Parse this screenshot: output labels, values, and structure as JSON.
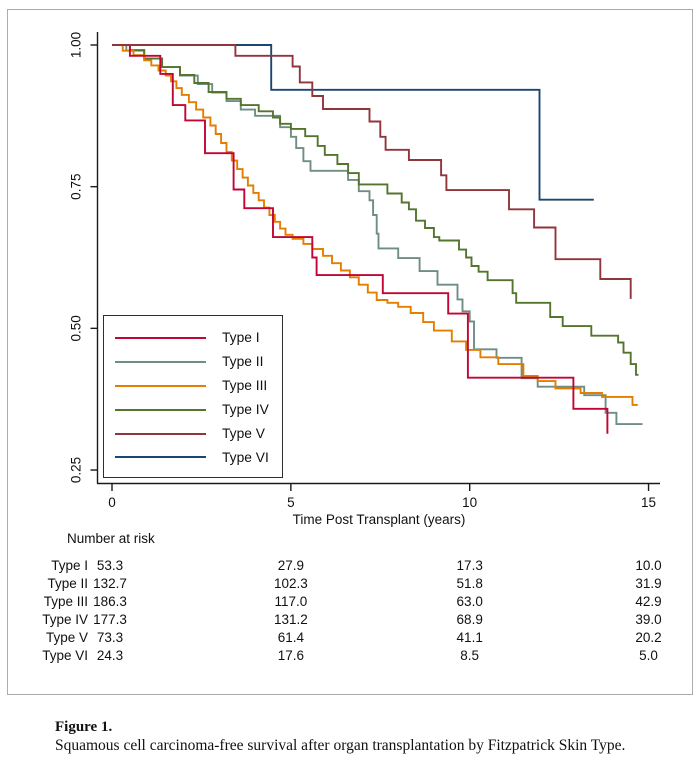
{
  "figure": {
    "caption_title": "Figure 1.",
    "caption_text": "Squamous cell carcinoma-free survival after organ transplantation by Fitzpatrick Skin Type."
  },
  "chart_data": {
    "type": "line",
    "subtype": "kaplan-meier-step-survival",
    "title": "",
    "xlabel": "Time Post Transplant (years)",
    "ylabel": "",
    "xlim": [
      0,
      15.2
    ],
    "ylim": [
      0.22,
      1.02
    ],
    "grid": false,
    "legend_position": "inside-lower-left",
    "x_ticks": [
      0,
      5,
      10,
      15
    ],
    "y_tick_labels": [
      "1.00",
      "0.75",
      "0.50",
      "0.25"
    ],
    "y_tick_values": [
      1.0,
      0.75,
      0.5,
      0.25
    ],
    "series": [
      {
        "name": "Type I",
        "color": "#C10534",
        "end": 13.85,
        "steps": [
          [
            0,
            1.0
          ],
          [
            0.5,
            0.981
          ],
          [
            1.35,
            0.949
          ],
          [
            1.7,
            0.894
          ],
          [
            2.05,
            0.867
          ],
          [
            2.6,
            0.809
          ],
          [
            3.4,
            0.745
          ],
          [
            3.7,
            0.712
          ],
          [
            4.5,
            0.661
          ],
          [
            5.6,
            0.625
          ],
          [
            5.72,
            0.594
          ],
          [
            7.57,
            0.562
          ],
          [
            9.4,
            0.526
          ],
          [
            9.95,
            0.413
          ],
          [
            12.9,
            0.358
          ],
          [
            13.85,
            0.314
          ]
        ]
      },
      {
        "name": "Type II",
        "color": "#6E8E84",
        "end": 14.83,
        "steps": [
          [
            0,
            1.0
          ],
          [
            0.4,
            0.99
          ],
          [
            0.9,
            0.976
          ],
          [
            1.4,
            0.961
          ],
          [
            1.9,
            0.946
          ],
          [
            2.4,
            0.931
          ],
          [
            2.8,
            0.916
          ],
          [
            3.2,
            0.901
          ],
          [
            3.6,
            0.886
          ],
          [
            4.0,
            0.875
          ],
          [
            4.7,
            0.855
          ],
          [
            5.0,
            0.838
          ],
          [
            5.15,
            0.818
          ],
          [
            5.35,
            0.795
          ],
          [
            5.55,
            0.778
          ],
          [
            6.6,
            0.762
          ],
          [
            6.9,
            0.742
          ],
          [
            7.2,
            0.726
          ],
          [
            7.3,
            0.7
          ],
          [
            7.4,
            0.667
          ],
          [
            7.45,
            0.641
          ],
          [
            8.0,
            0.624
          ],
          [
            8.6,
            0.601
          ],
          [
            9.1,
            0.577
          ],
          [
            9.66,
            0.551
          ],
          [
            9.8,
            0.53
          ],
          [
            10.0,
            0.512
          ],
          [
            10.12,
            0.463
          ],
          [
            10.75,
            0.448
          ],
          [
            11.45,
            0.412
          ],
          [
            11.9,
            0.397
          ],
          [
            13.2,
            0.382
          ],
          [
            13.8,
            0.351
          ],
          [
            14.1,
            0.331
          ]
        ]
      },
      {
        "name": "Type III",
        "color": "#E37E00",
        "end": 14.7,
        "steps": [
          [
            0,
            1.0
          ],
          [
            0.3,
            0.99
          ],
          [
            0.6,
            0.982
          ],
          [
            0.9,
            0.973
          ],
          [
            1.1,
            0.964
          ],
          [
            1.3,
            0.955
          ],
          [
            1.5,
            0.946
          ],
          [
            1.65,
            0.936
          ],
          [
            1.8,
            0.924
          ],
          [
            1.95,
            0.912
          ],
          [
            2.15,
            0.899
          ],
          [
            2.35,
            0.886
          ],
          [
            2.55,
            0.872
          ],
          [
            2.75,
            0.858
          ],
          [
            2.9,
            0.843
          ],
          [
            3.05,
            0.827
          ],
          [
            3.2,
            0.811
          ],
          [
            3.35,
            0.796
          ],
          [
            3.5,
            0.781
          ],
          [
            3.65,
            0.766
          ],
          [
            3.8,
            0.752
          ],
          [
            3.95,
            0.739
          ],
          [
            4.1,
            0.726
          ],
          [
            4.25,
            0.713
          ],
          [
            4.4,
            0.7
          ],
          [
            4.55,
            0.688
          ],
          [
            4.7,
            0.676
          ],
          [
            4.85,
            0.665
          ],
          [
            5.05,
            0.658
          ],
          [
            5.35,
            0.649
          ],
          [
            5.6,
            0.64
          ],
          [
            5.9,
            0.628
          ],
          [
            6.15,
            0.615
          ],
          [
            6.4,
            0.602
          ],
          [
            6.65,
            0.59
          ],
          [
            6.9,
            0.577
          ],
          [
            7.15,
            0.563
          ],
          [
            7.4,
            0.55
          ],
          [
            7.7,
            0.545
          ],
          [
            8.0,
            0.538
          ],
          [
            8.35,
            0.527
          ],
          [
            8.7,
            0.511
          ],
          [
            9.0,
            0.496
          ],
          [
            9.5,
            0.477
          ],
          [
            9.9,
            0.462
          ],
          [
            10.3,
            0.449
          ],
          [
            10.8,
            0.437
          ],
          [
            11.5,
            0.416
          ],
          [
            11.9,
            0.407
          ],
          [
            12.4,
            0.394
          ],
          [
            13.1,
            0.386
          ],
          [
            13.7,
            0.379
          ],
          [
            14.55,
            0.365
          ]
        ]
      },
      {
        "name": "Type IV",
        "color": "#55752F",
        "end": 14.72,
        "steps": [
          [
            0,
            1.0
          ],
          [
            0.5,
            0.991
          ],
          [
            0.9,
            0.976
          ],
          [
            1.4,
            0.961
          ],
          [
            1.9,
            0.947
          ],
          [
            2.3,
            0.933
          ],
          [
            2.7,
            0.917
          ],
          [
            3.2,
            0.905
          ],
          [
            3.6,
            0.894
          ],
          [
            4.1,
            0.883
          ],
          [
            4.5,
            0.872
          ],
          [
            4.7,
            0.861
          ],
          [
            5.0,
            0.852
          ],
          [
            5.4,
            0.839
          ],
          [
            5.75,
            0.822
          ],
          [
            5.95,
            0.806
          ],
          [
            6.3,
            0.79
          ],
          [
            6.6,
            0.774
          ],
          [
            6.9,
            0.754
          ],
          [
            7.7,
            0.738
          ],
          [
            8.1,
            0.722
          ],
          [
            8.3,
            0.71
          ],
          [
            8.5,
            0.69
          ],
          [
            8.75,
            0.677
          ],
          [
            9.0,
            0.661
          ],
          [
            9.15,
            0.655
          ],
          [
            9.7,
            0.639
          ],
          [
            9.9,
            0.625
          ],
          [
            10.05,
            0.61
          ],
          [
            10.25,
            0.6
          ],
          [
            10.5,
            0.585
          ],
          [
            11.2,
            0.562
          ],
          [
            11.3,
            0.545
          ],
          [
            12.25,
            0.52
          ],
          [
            12.6,
            0.504
          ],
          [
            13.4,
            0.487
          ],
          [
            14.15,
            0.475
          ],
          [
            14.3,
            0.457
          ],
          [
            14.5,
            0.437
          ],
          [
            14.65,
            0.418
          ]
        ]
      },
      {
        "name": "Type V",
        "color": "#90353B",
        "end": 14.5,
        "steps": [
          [
            0,
            1.0
          ],
          [
            3.45,
            0.981
          ],
          [
            5.05,
            0.962
          ],
          [
            5.25,
            0.934
          ],
          [
            5.6,
            0.91
          ],
          [
            5.9,
            0.887
          ],
          [
            7.2,
            0.865
          ],
          [
            7.5,
            0.838
          ],
          [
            7.65,
            0.815
          ],
          [
            8.3,
            0.797
          ],
          [
            9.2,
            0.77
          ],
          [
            9.35,
            0.744
          ],
          [
            11.1,
            0.71
          ],
          [
            11.8,
            0.678
          ],
          [
            12.4,
            0.622
          ],
          [
            13.65,
            0.587
          ],
          [
            14.5,
            0.552
          ]
        ]
      },
      {
        "name": "Type VI",
        "color": "#1A476F",
        "end": 13.47,
        "steps": [
          [
            0,
            1.0
          ],
          [
            4.45,
            0.921
          ],
          [
            11.95,
            0.727
          ]
        ]
      }
    ],
    "risk_table": {
      "header": "Number at risk",
      "times": [
        0,
        5,
        10,
        15
      ],
      "rows": [
        {
          "label": "Type I",
          "values": [
            "53.3",
            "27.9",
            "17.3",
            "10.0"
          ]
        },
        {
          "label": "Type II",
          "values": [
            "132.7",
            "102.3",
            "51.8",
            "31.9"
          ]
        },
        {
          "label": "Type III",
          "values": [
            "186.3",
            "117.0",
            "63.0",
            "42.9"
          ]
        },
        {
          "label": "Type IV",
          "values": [
            "177.3",
            "131.2",
            "68.9",
            "39.0"
          ]
        },
        {
          "label": "Type V",
          "values": [
            "73.3",
            "61.4",
            "41.1",
            "20.2"
          ]
        },
        {
          "label": "Type VI",
          "values": [
            "24.3",
            "17.6",
            "8.5",
            "5.0"
          ]
        }
      ]
    }
  }
}
